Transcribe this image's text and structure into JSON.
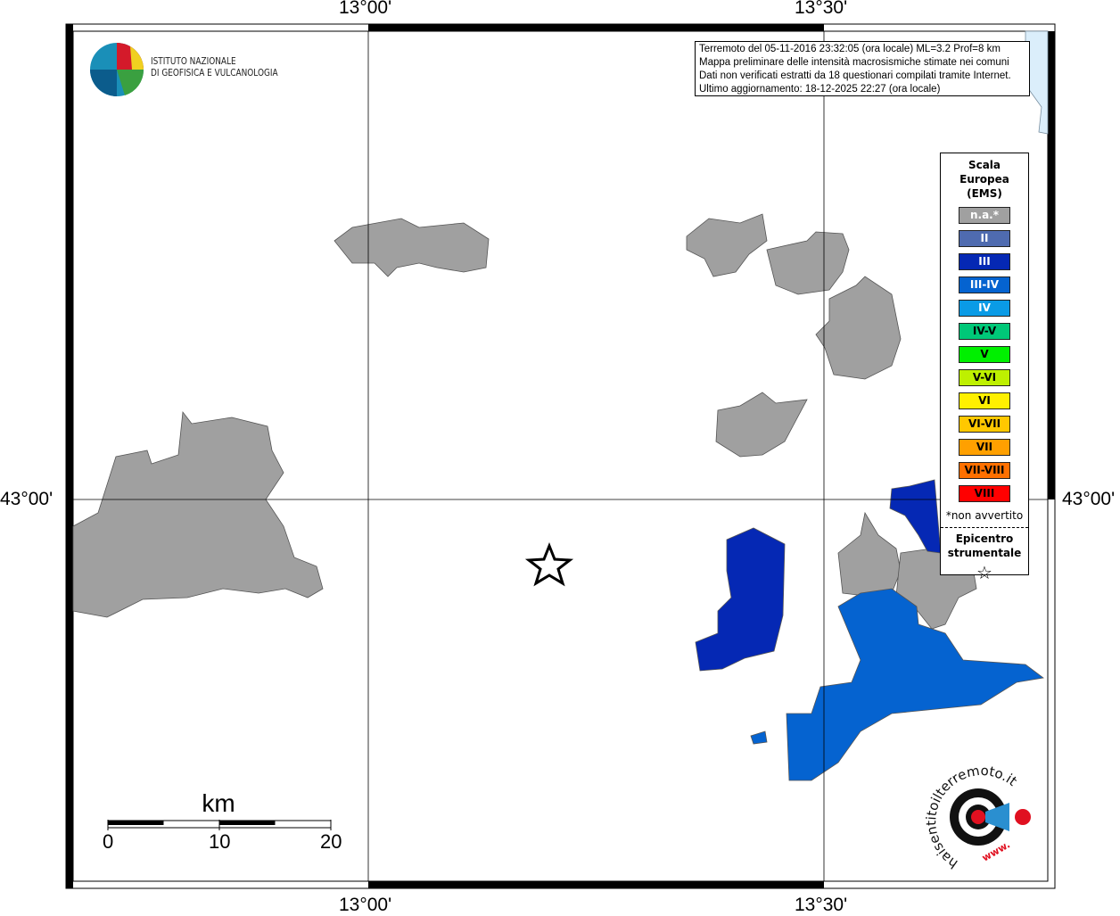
{
  "axes": {
    "lon_ticks": [
      "13°00'",
      "13°30'"
    ],
    "lat_ticks": [
      "43°00'"
    ]
  },
  "logo_ingv": {
    "line1": "ISTITUTO NAZIONALE",
    "line2": "DI GEOFISICA E VULCANOLOGIA"
  },
  "info": {
    "lines": [
      "Terremoto del 05-11-2016 23:32:05 (ora locale) ML=3.2 Prof=8 km",
      "Mappa preliminare delle intensità macrosismiche stimate nei comuni",
      "Dati non verificati estratti da 18 questionari compilati tramite Internet.",
      "Ultimo aggiornamento: 18-12-2025 22:27 (ora locale)"
    ]
  },
  "legend": {
    "title": "Scala Europea (EMS)",
    "items": [
      {
        "label": "n.a.*",
        "color": "#a0a0a0",
        "text": "#ffffff"
      },
      {
        "label": "II",
        "color": "#4f6bb0",
        "text": "#ffffff"
      },
      {
        "label": "III",
        "color": "#0528b4",
        "text": "#ffffff"
      },
      {
        "label": "III-IV",
        "color": "#0563d0",
        "text": "#ffffff"
      },
      {
        "label": "IV",
        "color": "#0a9be6",
        "text": "#ffffff"
      },
      {
        "label": "IV-V",
        "color": "#00c878",
        "text": "#000000"
      },
      {
        "label": "V",
        "color": "#00f000",
        "text": "#000000"
      },
      {
        "label": "V-VI",
        "color": "#bef000",
        "text": "#000000"
      },
      {
        "label": "VI",
        "color": "#fff000",
        "text": "#000000"
      },
      {
        "label": "VI-VII",
        "color": "#ffc800",
        "text": "#000000"
      },
      {
        "label": "VII",
        "color": "#ffa000",
        "text": "#000000"
      },
      {
        "label": "VII-VIII",
        "color": "#ff7000",
        "text": "#000000"
      },
      {
        "label": "VIII",
        "color": "#ff0000",
        "text": "#000000"
      }
    ],
    "note": "*non avvertito",
    "epicenter_label": "Epicentro strumentale",
    "epicenter_icon": "star-outline"
  },
  "scale_bar": {
    "unit": "km",
    "labels": [
      "0",
      "10",
      "20"
    ]
  },
  "logo_hsit": {
    "text": "haisentitoilterremoto.it",
    "url_text": "www."
  }
}
